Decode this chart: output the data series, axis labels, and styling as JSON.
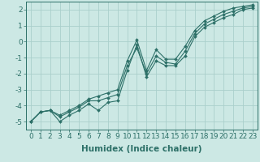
{
  "xlabel": "Humidex (Indice chaleur)",
  "ylabel": "",
  "background_color": "#cce8e4",
  "grid_color": "#aacfcc",
  "line_color": "#2d7068",
  "x": [
    0,
    1,
    2,
    3,
    4,
    5,
    6,
    7,
    8,
    9,
    10,
    11,
    12,
    13,
    14,
    15,
    16,
    17,
    18,
    19,
    20,
    21,
    22,
    23
  ],
  "y_line1": [
    -5.0,
    -4.4,
    -4.3,
    -4.6,
    -4.3,
    -4.0,
    -3.6,
    -3.4,
    -3.2,
    -3.0,
    -1.2,
    0.1,
    -1.8,
    -0.5,
    -1.1,
    -1.1,
    -0.3,
    0.7,
    1.3,
    1.6,
    1.9,
    2.1,
    2.2,
    2.3
  ],
  "y_line2": [
    -5.0,
    -4.4,
    -4.3,
    -4.7,
    -4.4,
    -4.1,
    -3.7,
    -3.7,
    -3.5,
    -3.3,
    -1.5,
    -0.4,
    -2.0,
    -0.9,
    -1.3,
    -1.4,
    -0.6,
    0.5,
    1.1,
    1.4,
    1.7,
    1.9,
    2.1,
    2.2
  ],
  "y_line3": [
    -5.0,
    -4.4,
    -4.3,
    -5.0,
    -4.6,
    -4.3,
    -3.9,
    -4.3,
    -3.8,
    -3.7,
    -1.8,
    -0.2,
    -2.2,
    -1.2,
    -1.5,
    -1.5,
    -0.9,
    0.3,
    0.9,
    1.2,
    1.5,
    1.7,
    2.0,
    2.1
  ],
  "ylim": [
    -5.5,
    2.5
  ],
  "xlim": [
    -0.5,
    23.5
  ],
  "yticks": [
    -5,
    -4,
    -3,
    -2,
    -1,
    0,
    1,
    2
  ],
  "xticks": [
    0,
    1,
    2,
    3,
    4,
    5,
    6,
    7,
    8,
    9,
    10,
    11,
    12,
    13,
    14,
    15,
    16,
    17,
    18,
    19,
    20,
    21,
    22,
    23
  ],
  "tick_fontsize": 6.5,
  "label_fontsize": 7.5,
  "label_fontweight": "bold"
}
